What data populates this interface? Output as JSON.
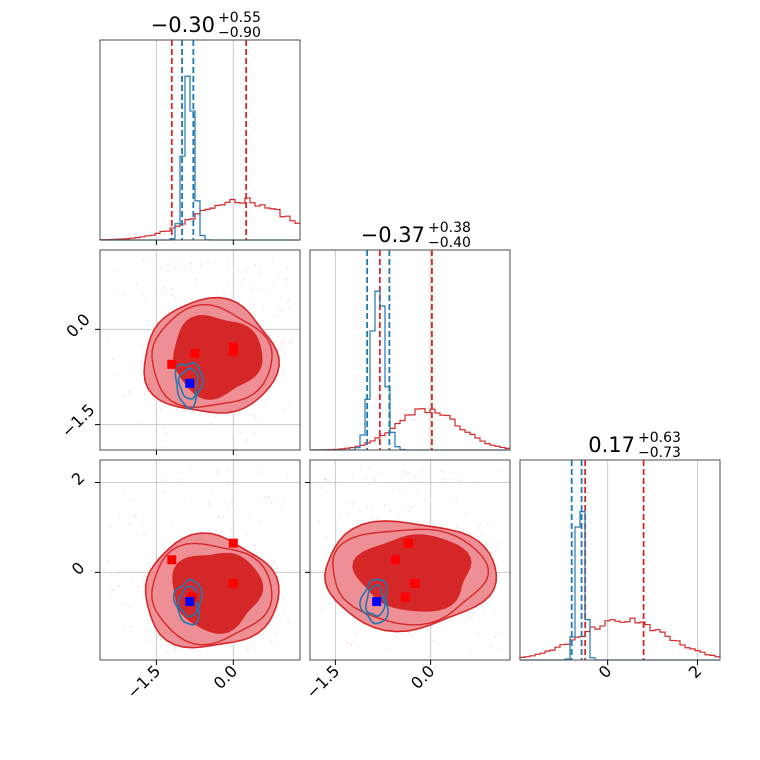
{
  "chart_data": {
    "type": "corner",
    "params": [
      {
        "title_value": "−0.30",
        "title_plus": "+0.55",
        "title_minus": "−0.90",
        "range": [
          -2.6,
          1.3
        ]
      },
      {
        "title_value": "−0.37",
        "title_plus": "+0.38",
        "title_minus": "−0.40",
        "range": [
          -1.9,
          1.25
        ]
      },
      {
        "title_value": "0.17",
        "title_plus": "+0.63",
        "title_minus": "−0.73",
        "range": [
          -1.95,
          2.5
        ]
      }
    ],
    "ticks": [
      {
        "values": [
          -1.5,
          0.0
        ],
        "labels": [
          "−1.5",
          "0.0"
        ]
      },
      {
        "values": [
          0.0,
          -1.5
        ],
        "labels": [
          "0.0",
          "−1.5"
        ]
      },
      {
        "values": [
          0,
          2
        ],
        "labels": [
          "0",
          "2"
        ]
      }
    ],
    "grid": true,
    "series": [
      {
        "name": "",
        "color": "#d62728",
        "hist_mean": [
          0.15,
          -0.05,
          0.35
        ],
        "hist_sd": [
          0.85,
          0.5,
          0.95
        ],
        "quantile_lines": [
          [
            -1.2,
            0.25
          ],
          [
            -0.8,
            0.02
          ],
          [
            -0.5,
            0.8
          ]
        ],
        "markers": [
          {
            "panel": [
              1,
              0
            ],
            "points": [
              [
                -1.2,
                -0.55
              ],
              [
                -0.75,
                -0.38
              ],
              [
                0.0,
                -0.28
              ],
              [
                0.0,
                -0.35
              ]
            ]
          },
          {
            "panel": [
              2,
              0
            ],
            "points": [
              [
                -1.2,
                0.28
              ],
              [
                0.0,
                0.65
              ],
              [
                0.0,
                -0.25
              ],
              [
                -0.8,
                -0.55
              ]
            ]
          },
          {
            "panel": [
              2,
              1
            ],
            "points": [
              [
                -0.35,
                0.65
              ],
              [
                -0.55,
                0.28
              ],
              [
                -0.25,
                -0.25
              ],
              [
                -0.4,
                -0.55
              ]
            ]
          }
        ]
      },
      {
        "name": "",
        "color": "#1f77b4",
        "hist_mean": [
          -0.87,
          -0.83,
          -0.6
        ],
        "hist_sd": [
          0.1,
          0.11,
          0.09
        ],
        "quantile_lines": [
          [
            -1.0,
            -0.78
          ],
          [
            -1.0,
            -0.65
          ],
          [
            -0.8,
            -0.58
          ]
        ],
        "markers": [
          {
            "panel": [
              1,
              0
            ],
            "points": [
              [
                -0.85,
                -0.85
              ]
            ]
          },
          {
            "panel": [
              2,
              0
            ],
            "points": [
              [
                -0.85,
                -0.65
              ]
            ]
          },
          {
            "panel": [
              2,
              1
            ],
            "points": [
              [
                -0.85,
                -0.65
              ]
            ]
          }
        ]
      }
    ]
  }
}
